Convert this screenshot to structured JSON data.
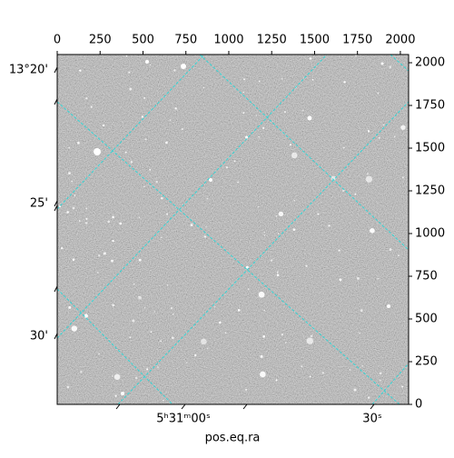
{
  "chart_data": {
    "type": "image",
    "xlabel": "pos.eq.ra",
    "xlim": [
      0,
      2048
    ],
    "xticks": [
      0,
      250,
      500,
      750,
      1000,
      1250,
      1500,
      1750,
      2000
    ],
    "ylim": [
      0,
      2048
    ],
    "yticks": [
      0,
      250,
      500,
      750,
      1000,
      1250,
      1500,
      1750,
      2000
    ],
    "ra_ticks": [
      "5ʰ31ᵐ00ˢ",
      "30ˢ"
    ],
    "dec_ticks": [
      "13°20'",
      "25'",
      "30'"
    ],
    "grid_color": "#33d6d6"
  }
}
